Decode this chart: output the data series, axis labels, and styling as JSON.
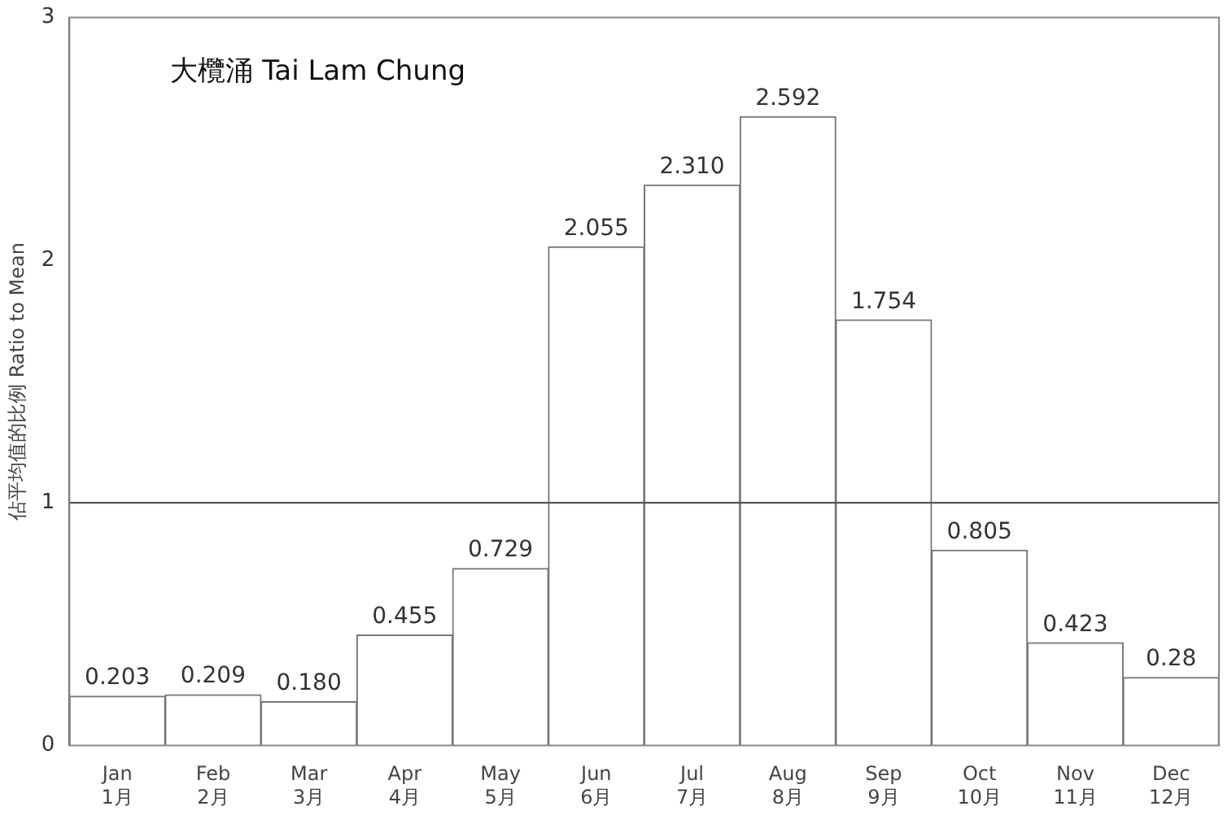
{
  "chart_data": {
    "type": "bar",
    "title": "大欖涌 Tai Lam Chung",
    "ylabel": "佔平均值的比例 Ratio to Mean",
    "categories": [
      "Jan\n1月",
      "Feb\n2月",
      "Mar\n3月",
      "Apr\n4月",
      "May\n5月",
      "Jun\n6月",
      "Jul\n7月",
      "Aug\n8月",
      "Sep\n9月",
      "Oct\n10月",
      "Nov\n11月",
      "Dec\n12月"
    ],
    "values": [
      0.203,
      0.209,
      0.18,
      0.455,
      0.729,
      2.055,
      2.31,
      2.592,
      1.754,
      0.805,
      0.423,
      0.28
    ],
    "value_labels": [
      "0.203",
      "0.209",
      "0.180",
      "0.455",
      "0.729",
      "2.055",
      "2.310",
      "2.592",
      "1.754",
      "0.805",
      "0.423",
      "0.28"
    ],
    "color": "#ffffff",
    "ylim": [
      0,
      3
    ],
    "yticks": [
      0,
      1,
      2,
      3
    ],
    "grid": false,
    "legend": false,
    "ref_lines": [
      {
        "axis": "y",
        "value": 1,
        "color": "#555555"
      }
    ]
  }
}
